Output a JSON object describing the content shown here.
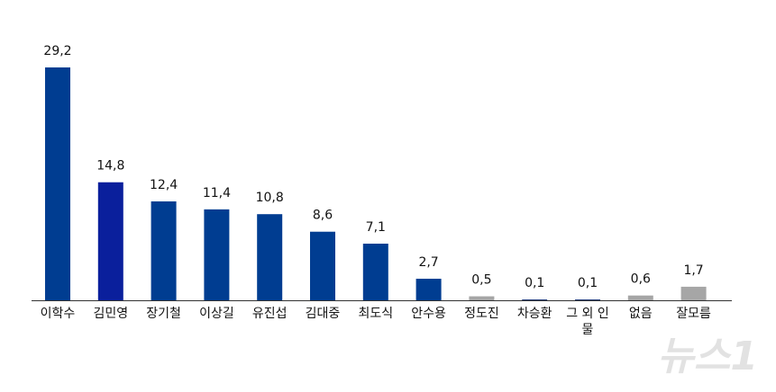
{
  "chart_data": {
    "type": "bar",
    "categories": [
      "이학수",
      "김민영",
      "장기철",
      "이상길",
      "유진섭",
      "김대중",
      "최도식",
      "안수용",
      "정도진",
      "차승환",
      "그 외 인물",
      "없음",
      "잘모름"
    ],
    "values": [
      29.2,
      14.8,
      12.4,
      11.4,
      10.8,
      8.6,
      7.1,
      2.7,
      0.5,
      0.1,
      0.1,
      0.6,
      1.7
    ],
    "value_labels": [
      "29,2",
      "14,8",
      "12,4",
      "11,4",
      "10,8",
      "8,6",
      "7,1",
      "2,7",
      "0,5",
      "0,1",
      "0,1",
      "0,6",
      "1,7"
    ],
    "colors": [
      "#003d91",
      "#0a1f9c",
      "#003d91",
      "#003d91",
      "#003d91",
      "#003d91",
      "#003d91",
      "#003d91",
      "#a6a6a6",
      "#102a6e",
      "#102a6e",
      "#a6a6a6",
      "#a6a6a6"
    ]
  },
  "watermark": "뉴스1"
}
